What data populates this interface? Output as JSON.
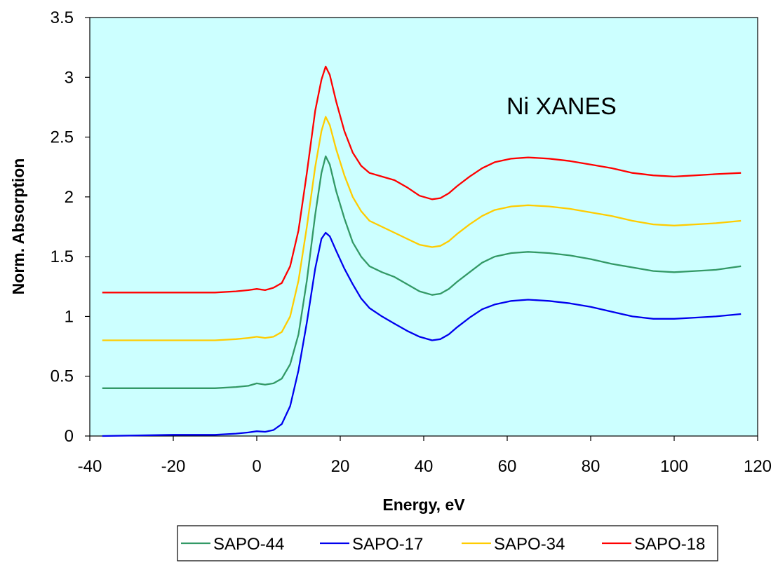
{
  "chart_data": {
    "type": "line",
    "title": "",
    "annotation": "Ni XANES",
    "xlabel": "Energy, eV",
    "ylabel": "Norm. Absorption",
    "xlim": [
      -40,
      120
    ],
    "ylim": [
      0,
      3.5
    ],
    "xticks": [
      -40,
      -20,
      0,
      20,
      40,
      60,
      80,
      100,
      120
    ],
    "yticks": [
      0,
      0.5,
      1,
      1.5,
      2,
      2.5,
      3,
      3.5
    ],
    "plot_background": "#ccffff",
    "grid": false,
    "legend_position": "bottom",
    "legend_order": [
      "SAPO-44",
      "SAPO-17",
      "SAPO-34",
      "SAPO-18"
    ],
    "series": [
      {
        "name": "SAPO-17",
        "color": "#0000ee",
        "points": [
          [
            -37,
            0.0
          ],
          [
            -20,
            0.01
          ],
          [
            -10,
            0.01
          ],
          [
            -5,
            0.02
          ],
          [
            -2,
            0.03
          ],
          [
            0,
            0.04
          ],
          [
            2,
            0.035
          ],
          [
            4,
            0.05
          ],
          [
            6,
            0.1
          ],
          [
            8,
            0.25
          ],
          [
            10,
            0.55
          ],
          [
            12,
            0.95
          ],
          [
            14,
            1.4
          ],
          [
            15.5,
            1.65
          ],
          [
            16.5,
            1.7
          ],
          [
            17.5,
            1.67
          ],
          [
            19,
            1.55
          ],
          [
            21,
            1.4
          ],
          [
            23,
            1.27
          ],
          [
            25,
            1.15
          ],
          [
            27,
            1.07
          ],
          [
            30,
            1.0
          ],
          [
            33,
            0.94
          ],
          [
            36,
            0.88
          ],
          [
            39,
            0.83
          ],
          [
            42,
            0.8
          ],
          [
            44,
            0.81
          ],
          [
            46,
            0.85
          ],
          [
            48,
            0.91
          ],
          [
            51,
            0.99
          ],
          [
            54,
            1.06
          ],
          [
            57,
            1.1
          ],
          [
            61,
            1.13
          ],
          [
            65,
            1.14
          ],
          [
            70,
            1.13
          ],
          [
            75,
            1.11
          ],
          [
            80,
            1.08
          ],
          [
            85,
            1.04
          ],
          [
            90,
            1.0
          ],
          [
            95,
            0.98
          ],
          [
            100,
            0.98
          ],
          [
            105,
            0.99
          ],
          [
            110,
            1.0
          ],
          [
            116,
            1.02
          ]
        ]
      },
      {
        "name": "SAPO-44",
        "color": "#339966",
        "points": [
          [
            -37,
            0.4
          ],
          [
            -20,
            0.4
          ],
          [
            -10,
            0.4
          ],
          [
            -5,
            0.41
          ],
          [
            -2,
            0.42
          ],
          [
            0,
            0.44
          ],
          [
            2,
            0.43
          ],
          [
            4,
            0.44
          ],
          [
            6,
            0.48
          ],
          [
            8,
            0.6
          ],
          [
            10,
            0.85
          ],
          [
            12,
            1.3
          ],
          [
            14,
            1.85
          ],
          [
            15.5,
            2.2
          ],
          [
            16.5,
            2.34
          ],
          [
            17.5,
            2.27
          ],
          [
            19,
            2.05
          ],
          [
            21,
            1.82
          ],
          [
            23,
            1.62
          ],
          [
            25,
            1.5
          ],
          [
            27,
            1.42
          ],
          [
            30,
            1.37
          ],
          [
            33,
            1.33
          ],
          [
            36,
            1.27
          ],
          [
            39,
            1.21
          ],
          [
            42,
            1.18
          ],
          [
            44,
            1.19
          ],
          [
            46,
            1.23
          ],
          [
            48,
            1.29
          ],
          [
            51,
            1.37
          ],
          [
            54,
            1.45
          ],
          [
            57,
            1.5
          ],
          [
            61,
            1.53
          ],
          [
            65,
            1.54
          ],
          [
            70,
            1.53
          ],
          [
            75,
            1.51
          ],
          [
            80,
            1.48
          ],
          [
            85,
            1.44
          ],
          [
            90,
            1.41
          ],
          [
            95,
            1.38
          ],
          [
            100,
            1.37
          ],
          [
            105,
            1.38
          ],
          [
            110,
            1.39
          ],
          [
            116,
            1.42
          ]
        ]
      },
      {
        "name": "SAPO-34",
        "color": "#ffcc00",
        "points": [
          [
            -37,
            0.8
          ],
          [
            -20,
            0.8
          ],
          [
            -10,
            0.8
          ],
          [
            -5,
            0.81
          ],
          [
            -2,
            0.82
          ],
          [
            0,
            0.83
          ],
          [
            2,
            0.82
          ],
          [
            4,
            0.83
          ],
          [
            6,
            0.87
          ],
          [
            8,
            1.0
          ],
          [
            10,
            1.3
          ],
          [
            12,
            1.75
          ],
          [
            14,
            2.25
          ],
          [
            15.5,
            2.55
          ],
          [
            16.5,
            2.67
          ],
          [
            17.5,
            2.6
          ],
          [
            19,
            2.4
          ],
          [
            21,
            2.18
          ],
          [
            23,
            2.0
          ],
          [
            25,
            1.88
          ],
          [
            27,
            1.8
          ],
          [
            30,
            1.75
          ],
          [
            33,
            1.7
          ],
          [
            36,
            1.65
          ],
          [
            39,
            1.6
          ],
          [
            42,
            1.58
          ],
          [
            44,
            1.59
          ],
          [
            46,
            1.63
          ],
          [
            48,
            1.69
          ],
          [
            51,
            1.77
          ],
          [
            54,
            1.84
          ],
          [
            57,
            1.89
          ],
          [
            61,
            1.92
          ],
          [
            65,
            1.93
          ],
          [
            70,
            1.92
          ],
          [
            75,
            1.9
          ],
          [
            80,
            1.87
          ],
          [
            85,
            1.84
          ],
          [
            90,
            1.8
          ],
          [
            95,
            1.77
          ],
          [
            100,
            1.76
          ],
          [
            105,
            1.77
          ],
          [
            110,
            1.78
          ],
          [
            116,
            1.8
          ]
        ]
      },
      {
        "name": "SAPO-18",
        "color": "#ff0000",
        "points": [
          [
            -37,
            1.2
          ],
          [
            -20,
            1.2
          ],
          [
            -10,
            1.2
          ],
          [
            -5,
            1.21
          ],
          [
            -2,
            1.22
          ],
          [
            0,
            1.23
          ],
          [
            2,
            1.22
          ],
          [
            4,
            1.24
          ],
          [
            6,
            1.28
          ],
          [
            8,
            1.42
          ],
          [
            10,
            1.72
          ],
          [
            12,
            2.2
          ],
          [
            14,
            2.72
          ],
          [
            15.5,
            2.98
          ],
          [
            16.5,
            3.09
          ],
          [
            17.5,
            3.02
          ],
          [
            19,
            2.8
          ],
          [
            21,
            2.55
          ],
          [
            23,
            2.37
          ],
          [
            25,
            2.26
          ],
          [
            27,
            2.2
          ],
          [
            30,
            2.17
          ],
          [
            33,
            2.14
          ],
          [
            36,
            2.08
          ],
          [
            39,
            2.01
          ],
          [
            42,
            1.98
          ],
          [
            44,
            1.99
          ],
          [
            46,
            2.03
          ],
          [
            48,
            2.09
          ],
          [
            51,
            2.17
          ],
          [
            54,
            2.24
          ],
          [
            57,
            2.29
          ],
          [
            61,
            2.32
          ],
          [
            65,
            2.33
          ],
          [
            70,
            2.32
          ],
          [
            75,
            2.3
          ],
          [
            80,
            2.27
          ],
          [
            85,
            2.24
          ],
          [
            90,
            2.2
          ],
          [
            95,
            2.18
          ],
          [
            100,
            2.17
          ],
          [
            105,
            2.18
          ],
          [
            110,
            2.19
          ],
          [
            116,
            2.2
          ]
        ]
      }
    ]
  }
}
